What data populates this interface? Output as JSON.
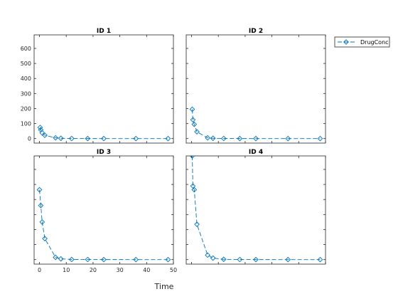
{
  "chart_data": {
    "type": "line",
    "xlabel": "Time",
    "ylabel": "",
    "xlim": [
      -2,
      50
    ],
    "ylim": [
      -30,
      690
    ],
    "xticks": [
      0,
      10,
      20,
      30,
      40,
      50
    ],
    "yticks": [
      0,
      100,
      200,
      300,
      400,
      500,
      600
    ],
    "legend": {
      "entries": [
        "DrugConc"
      ],
      "placement": "outside-top-right"
    },
    "line_color": "#0072bd",
    "line_style": "dashed",
    "marker": "diamond",
    "panels": [
      {
        "title": "ID 1",
        "series": [
          {
            "name": "DrugConc",
            "x": [
              0.25,
              0.5,
              1,
              2,
              6,
              8,
              12,
              18,
              24,
              36,
              48
            ],
            "y": [
              74,
              58,
              38,
              22,
              5,
              2,
              0.5,
              0.2,
              0.1,
              0.05,
              0.02
            ]
          }
        ]
      },
      {
        "title": "ID 2",
        "series": [
          {
            "name": "DrugConc",
            "x": [
              0.25,
              0.5,
              1,
              2,
              6,
              8,
              12,
              18,
              24,
              36,
              48
            ],
            "y": [
              195,
              125,
              95,
              45,
              5,
              2,
              0.5,
              0.2,
              0.1,
              0.05,
              0.02
            ]
          }
        ]
      },
      {
        "title": "ID 3",
        "series": [
          {
            "name": "DrugConc",
            "x": [
              0,
              0.5,
              1,
              2,
              6,
              8,
              12,
              18,
              24,
              36,
              48
            ],
            "y": [
              465,
              360,
              250,
              140,
              15,
              5,
              1,
              0.5,
              0.2,
              0.1,
              0.05
            ]
          }
        ]
      },
      {
        "title": "ID 4",
        "series": [
          {
            "name": "DrugConc",
            "x": [
              0.25,
              0.5,
              1,
              2,
              6,
              8,
              12,
              18,
              24,
              36,
              48
            ],
            "y": [
              690,
              490,
              465,
              235,
              30,
              10,
              2,
              0.5,
              0.2,
              0.1,
              0.05
            ]
          }
        ]
      }
    ]
  }
}
